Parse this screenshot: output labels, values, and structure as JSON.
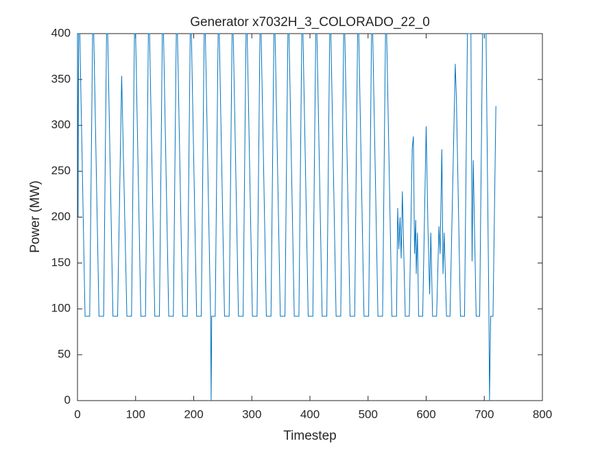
{
  "chart_data": {
    "type": "line",
    "title": "Generator x7032H_3_COLORADO_22_0",
    "xlabel": "Timestep",
    "ylabel": "Power (MW)",
    "x": [
      0,
      1,
      2,
      4,
      13,
      21,
      26,
      28,
      37,
      45,
      50,
      52,
      61,
      69,
      76,
      85,
      93,
      98,
      100,
      109,
      117,
      122,
      124,
      133,
      141,
      146,
      148,
      157,
      165,
      170,
      172,
      181,
      189,
      194,
      196,
      205,
      213,
      218,
      220,
      229,
      230,
      231,
      237,
      242,
      244,
      253,
      261,
      266,
      268,
      277,
      285,
      290,
      292,
      301,
      309,
      314,
      316,
      325,
      333,
      338,
      340,
      349,
      357,
      362,
      364,
      373,
      381,
      386,
      388,
      397,
      405,
      410,
      412,
      421,
      429,
      434,
      436,
      445,
      453,
      458,
      460,
      469,
      477,
      482,
      484,
      493,
      501,
      506,
      508,
      517,
      525,
      530,
      532,
      541,
      549,
      551,
      553,
      555,
      557,
      559,
      564,
      571,
      576,
      578,
      580,
      582,
      583,
      585,
      587,
      594,
      600,
      603,
      606,
      608,
      611,
      618,
      622,
      624,
      627,
      629,
      631,
      635,
      641,
      650,
      652,
      659,
      666,
      671,
      677,
      679,
      681,
      686,
      692,
      697,
      703,
      708,
      709,
      711,
      715,
      720
    ],
    "series": [
      {
        "name": "Power",
        "color": "#0072bd",
        "values": [
          400,
          200,
          400,
          400,
          92,
          92,
          400,
          400,
          92,
          92,
          400,
          400,
          92,
          92,
          354,
          92,
          92,
          400,
          400,
          92,
          92,
          400,
          400,
          92,
          92,
          400,
          400,
          92,
          92,
          400,
          400,
          92,
          92,
          400,
          400,
          92,
          92,
          400,
          400,
          92,
          0,
          92,
          92,
          400,
          400,
          92,
          92,
          400,
          400,
          92,
          92,
          400,
          400,
          92,
          92,
          400,
          400,
          92,
          92,
          400,
          400,
          92,
          92,
          400,
          400,
          92,
          92,
          400,
          400,
          92,
          92,
          400,
          400,
          92,
          92,
          400,
          400,
          92,
          92,
          400,
          400,
          92,
          92,
          400,
          400,
          92,
          92,
          400,
          400,
          92,
          92,
          400,
          400,
          92,
          92,
          210,
          165,
          200,
          155,
          228,
          92,
          92,
          275,
          288,
          160,
          197,
          138,
          183,
          92,
          92,
          299,
          190,
          116,
          183,
          92,
          92,
          190,
          160,
          274,
          138,
          183,
          92,
          92,
          367,
          330,
          92,
          92,
          400,
          400,
          152,
          262,
          92,
          92,
          400,
          400,
          92,
          0,
          92,
          92,
          321
        ]
      }
    ],
    "xlim": [
      0,
      800
    ],
    "ylim": [
      0,
      400
    ],
    "xticks": [
      0,
      100,
      200,
      300,
      400,
      500,
      600,
      700,
      800
    ],
    "yticks": [
      0,
      50,
      100,
      150,
      200,
      250,
      300,
      350,
      400
    ]
  }
}
